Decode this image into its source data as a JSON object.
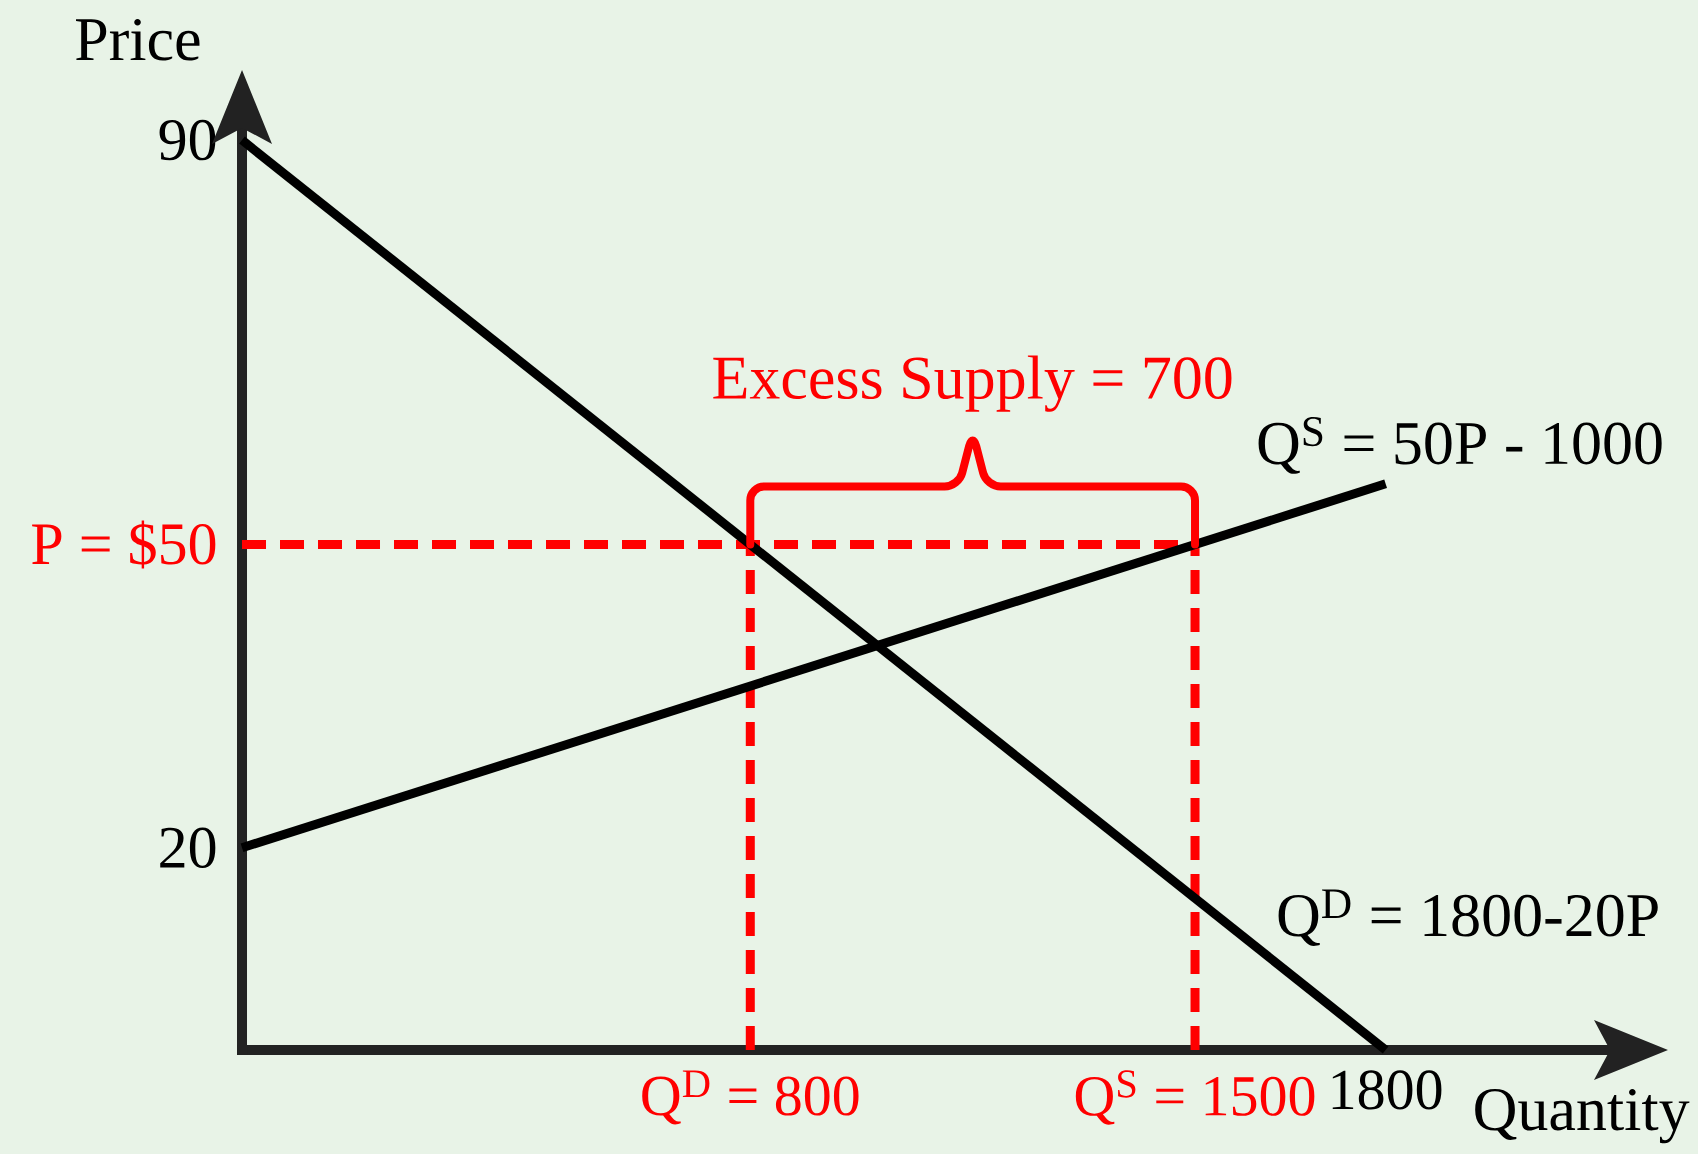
{
  "chart_data": {
    "type": "line",
    "xlabel": "Quantity",
    "ylabel": "Price",
    "xlim": [
      0,
      2150
    ],
    "ylim": [
      0,
      91
    ],
    "xticks": [
      {
        "value": 800,
        "label": "Q$^{D}$ = 800"
      },
      {
        "value": 1500,
        "label": "Q$^{S}$ = 1500"
      },
      1800
    ],
    "yticks": [
      20,
      {
        "value": 50,
        "label": "P = $50"
      },
      90
    ],
    "series": [
      {
        "color": "#ff0000",
        "line_style": "dashed",
        "x": [
          0,
          1500
        ],
        "values": [
          50,
          50
        ]
      },
      {
        "color": "#ff0000",
        "line_style": "dashed",
        "x": [
          800,
          800
        ],
        "values": [
          0,
          50
        ]
      },
      {
        "color": "#ff0000",
        "line_style": "dashed",
        "x": [
          1500,
          1500
        ],
        "values": [
          0,
          50
        ]
      },
      {
        "name": "Q$^{D}$ = 1800-20P",
        "color": "#000000",
        "line_style": "solid",
        "x": [
          0,
          1800
        ],
        "values": [
          90,
          0
        ]
      },
      {
        "name": "Q$^{S}$ = 50P - 1000",
        "color": "#000000",
        "line_style": "solid",
        "x": [
          0,
          1800
        ],
        "values": [
          20,
          56
        ]
      }
    ],
    "annotations": [
      {
        "text": "Excess Supply = 700",
        "x": 1150,
        "y": 50
      }
    ]
  }
}
